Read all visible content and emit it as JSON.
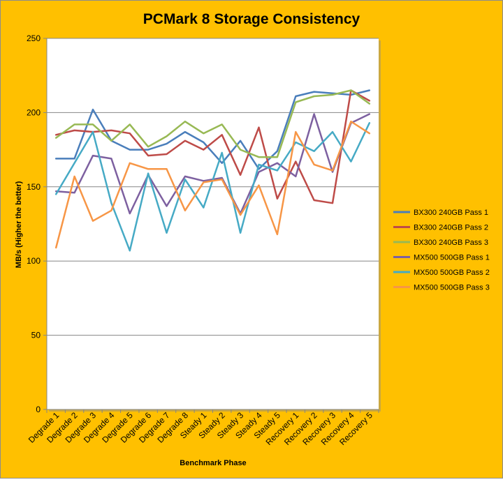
{
  "chart_data": {
    "type": "line",
    "title": "PCMark 8 Storage Consistency",
    "xlabel": "Benchmark Phase",
    "ylabel": "MB/s (Higher the better)",
    "ylim": [
      0,
      250
    ],
    "yticks": [
      0,
      50,
      100,
      150,
      200,
      250
    ],
    "grid": true,
    "legend_position": "right",
    "categories": [
      "Degrade 1",
      "Degrade 2",
      "Degrade 3",
      "Degrade 4",
      "Degrade 5",
      "Degrade 6",
      "Degrade 7",
      "Degrade 8",
      "Steady 1",
      "Steady 2",
      "Steady 3",
      "Steady 4",
      "Steady 5",
      "Recovery 1",
      "Recovery 2",
      "Recovery 3",
      "Recovery 4",
      "Recovery 5"
    ],
    "series": [
      {
        "name": "BX300 240GB Pass 1",
        "color": "#4A7EBB",
        "values": [
          169,
          169,
          202,
          181,
          175,
          175,
          179,
          187,
          180,
          166,
          181,
          162,
          174,
          211,
          214,
          213,
          212,
          215
        ]
      },
      {
        "name": "BX300 240GB Pass 2",
        "color": "#BE4B48",
        "values": [
          185,
          188,
          187,
          188,
          186,
          171,
          172,
          181,
          175,
          185,
          158,
          190,
          142,
          167,
          141,
          139,
          215,
          208
        ]
      },
      {
        "name": "BX300 240GB Pass 3",
        "color": "#98B954",
        "values": [
          183,
          192,
          192,
          181,
          192,
          177,
          184,
          194,
          186,
          192,
          175,
          170,
          170,
          207,
          211,
          212,
          215,
          206
        ]
      },
      {
        "name": "MX500 500GB Pass 1",
        "color": "#7D60A0",
        "values": [
          147,
          146,
          171,
          169,
          132,
          158,
          137,
          157,
          154,
          156,
          132,
          160,
          166,
          157,
          199,
          160,
          193,
          199
        ]
      },
      {
        "name": "MX500 500GB Pass 2",
        "color": "#46AAC5",
        "values": [
          145,
          166,
          187,
          139,
          107,
          159,
          119,
          155,
          136,
          173,
          119,
          165,
          161,
          180,
          174,
          187,
          167,
          193
        ]
      },
      {
        "name": "MX500 500GB Pass 3",
        "color": "#F79646",
        "values": [
          109,
          157,
          127,
          134,
          166,
          162,
          162,
          134,
          153,
          155,
          131,
          151,
          118,
          187,
          165,
          161,
          194,
          186
        ]
      }
    ]
  }
}
